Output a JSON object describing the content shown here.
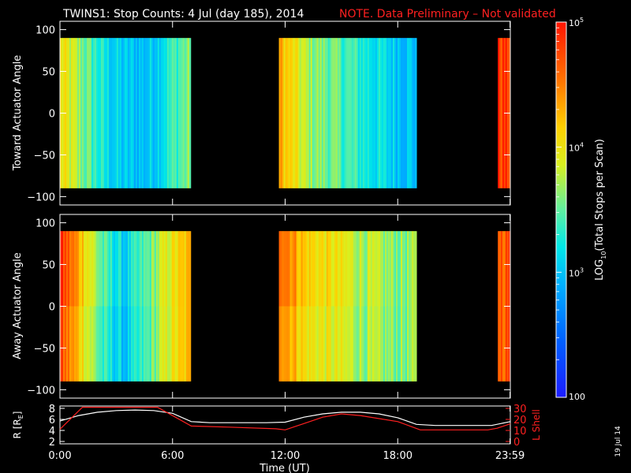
{
  "title": {
    "main": "TWINS1: Stop Counts:  4 Jul (day 185), 2014",
    "note": "NOTE. Data Preliminary – Not validated"
  },
  "side_stamp": "19 Jul 14",
  "colorbar": {
    "label_prefix": "LOG",
    "label_sub": "10",
    "label_suffix": "(Total Stops per Scan)",
    "ticks": [
      {
        "value": 100,
        "base": "100",
        "exp": ""
      },
      {
        "value": 1000,
        "base": "10",
        "exp": "3"
      },
      {
        "value": 10000,
        "base": "10",
        "exp": "4"
      },
      {
        "value": 100000,
        "base": "10",
        "exp": "5"
      }
    ],
    "range": [
      100,
      100000
    ],
    "scale": "log"
  },
  "colors": {
    "background": "#000000",
    "foreground": "#ffffff",
    "note": "#ff2020",
    "r_line": "#ffffff",
    "l_line": "#ff2020"
  },
  "chart_data": [
    {
      "type": "heatmap",
      "ylabel": "Toward Actuator Angle",
      "ylim": [
        -110,
        110
      ],
      "yticks": [
        100,
        50,
        0,
        -50,
        -100
      ],
      "data_y_range": [
        -90,
        90
      ],
      "segments": [
        {
          "start": "0:00",
          "end": "6:58",
          "mean_log10": [
            4.0,
            3.6,
            3.2,
            3.0,
            3.0,
            3.3,
            3.6
          ]
        },
        {
          "start": "11:40",
          "end": "19:00",
          "mean_log10": [
            4.3,
            3.7,
            3.5,
            3.3,
            3.1,
            3.0
          ]
        },
        {
          "start": "23:20",
          "end": "23:59",
          "mean_log10": [
            4.8
          ]
        }
      ]
    },
    {
      "type": "heatmap",
      "ylabel": "Away Actuator Angle",
      "ylim": [
        -110,
        110
      ],
      "yticks": [
        100,
        50,
        0,
        -50,
        -100
      ],
      "data_y_range": [
        -90,
        90
      ],
      "segments": [
        {
          "start": "0:00",
          "end": "6:58",
          "mean_log10": [
            4.7,
            4.1,
            3.3,
            3.0,
            3.4,
            3.9,
            4.2
          ]
        },
        {
          "start": "11:40",
          "end": "19:00",
          "mean_log10": [
            4.6,
            4.0,
            3.9,
            3.7,
            3.6,
            3.6
          ]
        },
        {
          "start": "23:20",
          "end": "23:59",
          "mean_log10": [
            4.7
          ]
        }
      ]
    },
    {
      "type": "line",
      "xlabel": "Time (UT)",
      "xticks": [
        "0:00",
        "6:00",
        "12:00",
        "18:00",
        "23:59"
      ],
      "xlim": [
        0,
        24
      ],
      "ylabel_left": "R [R",
      "ylabel_left_sub": "E",
      "ylabel_left_suffix": "]",
      "ylim_left": [
        2,
        8
      ],
      "yticks_left": [
        "8",
        "6",
        "4",
        "2"
      ],
      "ylabel_right": "L Shell",
      "ylim_right": [
        0,
        30
      ],
      "yticks_right": [
        "30",
        "20",
        "10",
        "0"
      ],
      "series": [
        {
          "name": "R",
          "axis": "left",
          "x": [
            0,
            1,
            2,
            3,
            4,
            5,
            6,
            7,
            8,
            9,
            10,
            11,
            12,
            13,
            14,
            15,
            16,
            17,
            18,
            19,
            20,
            21,
            22,
            23,
            24
          ],
          "y": [
            5.7,
            6.7,
            7.3,
            7.6,
            7.7,
            7.6,
            7.1,
            5.6,
            5.4,
            5.4,
            5.4,
            5.4,
            5.5,
            6.4,
            7.0,
            7.3,
            7.3,
            7.0,
            6.3,
            5.1,
            4.9,
            4.9,
            4.9,
            4.9,
            5.6
          ]
        },
        {
          "name": "L Shell",
          "axis": "right",
          "x": [
            0,
            1.2,
            5.2,
            7.0,
            9.0,
            11.5,
            12.0,
            14.0,
            15.0,
            16.0,
            18.0,
            19.2,
            21.0,
            22.8,
            23.3,
            24
          ],
          "y": [
            11.0,
            31.0,
            31.0,
            14.0,
            13.0,
            11.5,
            10.5,
            22.0,
            25.0,
            23.5,
            18.0,
            10.5,
            10.5,
            10.5,
            12.0,
            16.0
          ]
        }
      ]
    }
  ]
}
